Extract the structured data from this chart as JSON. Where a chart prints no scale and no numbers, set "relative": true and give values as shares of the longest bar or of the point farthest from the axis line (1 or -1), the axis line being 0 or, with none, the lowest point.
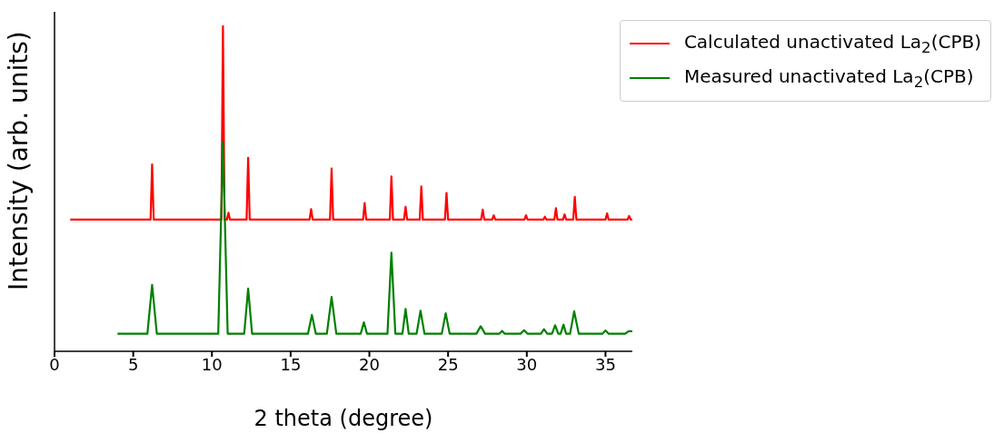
{
  "chart_data": {
    "type": "line",
    "relative": true,
    "xlabel": "2 theta (degree)",
    "ylabel": "Intensity (arb. units)",
    "xlim": [
      0,
      36.7
    ],
    "xticks": [
      0,
      5,
      10,
      15,
      20,
      25,
      30,
      35
    ],
    "tick_labels": "x",
    "legend": "top right",
    "grid": false,
    "marker": "none",
    "line_style": "solid",
    "series": [
      {
        "name": "Calculated unactivated La$_{2}$(CPB)",
        "color": "#ff0000",
        "x": [
          1.0,
          6.1,
          6.2,
          6.3,
          10.6,
          10.7,
          10.8,
          10.95,
          11.05,
          11.15,
          12.2,
          12.3,
          12.4,
          16.2,
          16.3,
          16.4,
          17.5,
          17.6,
          17.7,
          19.6,
          19.7,
          19.8,
          21.3,
          21.4,
          21.5,
          22.2,
          22.3,
          22.4,
          23.2,
          23.3,
          23.4,
          24.8,
          24.9,
          25.0,
          27.1,
          27.2,
          27.3,
          27.8,
          27.9,
          28.0,
          29.85,
          29.95,
          30.05,
          31.05,
          31.15,
          31.25,
          31.75,
          31.85,
          31.95,
          32.3,
          32.4,
          32.5,
          32.95,
          33.05,
          33.15,
          35.0,
          35.1,
          35.2,
          36.4,
          36.5,
          36.6,
          36.7
        ],
        "values": [
          0.405,
          0.405,
          0.575,
          0.405,
          0.405,
          1,
          0.405,
          0.405,
          0.426,
          0.405,
          0.405,
          0.595,
          0.405,
          0.405,
          0.437,
          0.405,
          0.405,
          0.562,
          0.405,
          0.405,
          0.456,
          0.405,
          0.405,
          0.538,
          0.405,
          0.405,
          0.444,
          0.405,
          0.405,
          0.507,
          0.405,
          0.405,
          0.487,
          0.405,
          0.405,
          0.436,
          0.405,
          0.405,
          0.418,
          0.405,
          0.405,
          0.418,
          0.405,
          0.405,
          0.414,
          0.405,
          0.405,
          0.44,
          0.405,
          0.405,
          0.421,
          0.405,
          0.405,
          0.475,
          0.405,
          0.405,
          0.424,
          0.405,
          0.405,
          0.416,
          0.405,
          0.405
        ]
      },
      {
        "name": "Measured unactivated La$_{2}$(CPB)",
        "color": "#008000",
        "x": [
          4.0,
          5.9,
          6.2,
          6.5,
          10.4,
          10.7,
          11.0,
          12.05,
          12.3,
          12.55,
          16.1,
          16.35,
          16.6,
          17.3,
          17.6,
          17.9,
          19.45,
          19.65,
          19.85,
          21.15,
          21.4,
          21.65,
          22.1,
          22.3,
          22.5,
          23.0,
          23.25,
          23.5,
          24.6,
          24.85,
          25.1,
          26.8,
          27.07,
          27.35,
          28.25,
          28.43,
          28.6,
          29.6,
          29.83,
          30.05,
          30.9,
          31.09,
          31.3,
          31.6,
          31.8,
          32.0,
          32.15,
          32.33,
          32.5,
          32.75,
          33.01,
          33.3,
          34.8,
          35.0,
          35.2,
          36.25,
          36.47,
          36.7
        ],
        "values": [
          0.054,
          0.054,
          0.204,
          0.054,
          0.054,
          0.642,
          0.054,
          0.054,
          0.193,
          0.054,
          0.054,
          0.112,
          0.054,
          0.054,
          0.167,
          0.054,
          0.054,
          0.089,
          0.054,
          0.054,
          0.303,
          0.054,
          0.054,
          0.13,
          0.054,
          0.054,
          0.125,
          0.054,
          0.054,
          0.117,
          0.054,
          0.054,
          0.077,
          0.054,
          0.054,
          0.063,
          0.054,
          0.054,
          0.065,
          0.054,
          0.054,
          0.068,
          0.054,
          0.054,
          0.08,
          0.054,
          0.054,
          0.082,
          0.054,
          0.054,
          0.123,
          0.054,
          0.054,
          0.064,
          0.054,
          0.054,
          0.062,
          0.062
        ]
      }
    ]
  }
}
